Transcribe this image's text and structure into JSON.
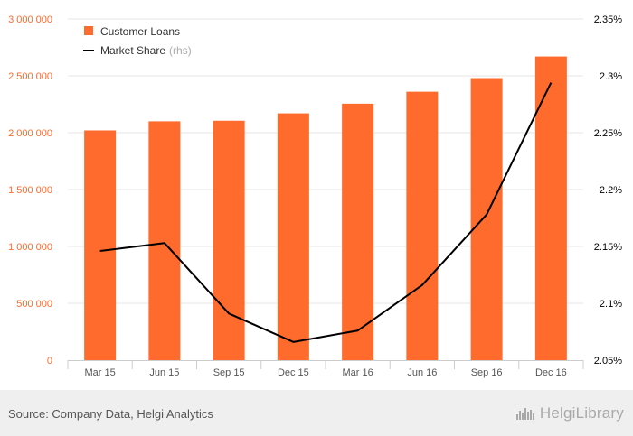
{
  "chart_data": {
    "type": "bar",
    "categories": [
      "Mar 15",
      "Jun 15",
      "Sep 15",
      "Dec 15",
      "Mar 16",
      "Jun 16",
      "Sep 16",
      "Dec 16"
    ],
    "series": [
      {
        "name": "Customer Loans",
        "type": "bar",
        "axis": "left",
        "color": "#ff6b2c",
        "values": [
          2020000,
          2100000,
          2105000,
          2170000,
          2255000,
          2360000,
          2480000,
          2670000
        ]
      },
      {
        "name": "Market Share",
        "name_suffix": "(rhs)",
        "type": "line",
        "axis": "right",
        "color": "#000000",
        "values": [
          2.146,
          2.153,
          2.091,
          2.066,
          2.076,
          2.116,
          2.178,
          2.294
        ]
      }
    ],
    "left_axis": {
      "ylim": [
        0,
        3000000
      ],
      "ticks": [
        0,
        500000,
        1000000,
        1500000,
        2000000,
        2500000,
        3000000
      ],
      "tick_labels": [
        "0",
        "500 000",
        "1 000 000",
        "1 500 000",
        "2 000 000",
        "2 500 000",
        "3 000 000"
      ],
      "label_color": "#ff6b2c"
    },
    "right_axis": {
      "ylim": [
        2.05,
        2.35
      ],
      "ticks": [
        2.05,
        2.1,
        2.15,
        2.2,
        2.25,
        2.3,
        2.35
      ],
      "tick_labels": [
        "2.05%",
        "2.1%",
        "2.15%",
        "2.2%",
        "2.25%",
        "2.3%",
        "2.35%"
      ],
      "label_color": "#000000"
    },
    "title": "",
    "xlabel": "",
    "grid": true,
    "legend": "top-left"
  },
  "footer": {
    "source": "Source: Company Data, Helgi Analytics",
    "logo_text": "HelgiLibrary",
    "logo_icon": "helgi-bars-icon"
  }
}
